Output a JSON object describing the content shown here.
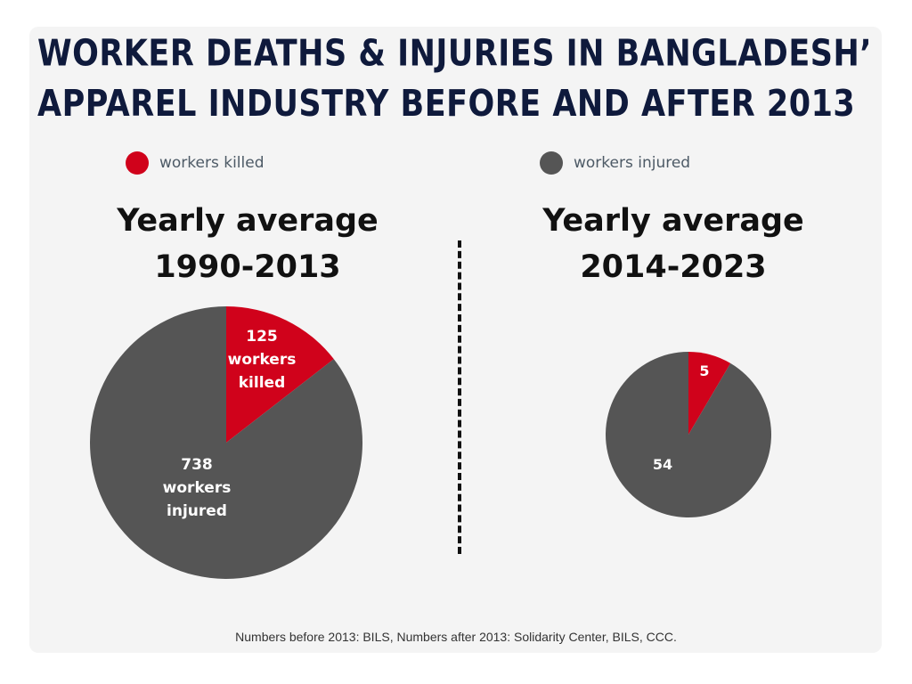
{
  "title_line1": "WORKER DEATHS & INJURIES IN BANGLADESH’",
  "title_line2": "APPAREL INDUSTRY BEFORE AND AFTER 2013",
  "legend": [
    {
      "label": "workers killed",
      "color": "#d0021b"
    },
    {
      "label": "workers injured",
      "color": "#555555"
    }
  ],
  "source": "Numbers before 2013: BILS, Numbers after 2013: Solidarity Center, BILS,  CCC.",
  "chart_data": [
    {
      "type": "pie",
      "title": [
        "Yearly average",
        "1990-2013"
      ],
      "slices": [
        {
          "name": "workers killed",
          "value": 125,
          "color": "#d0021b",
          "label": [
            "125",
            "workers",
            "killed"
          ]
        },
        {
          "name": "workers injured",
          "value": 738,
          "color": "#555555",
          "label": [
            "738",
            "workers",
            "injured"
          ]
        }
      ]
    },
    {
      "type": "pie",
      "title": [
        "Yearly average",
        "2014-2023"
      ],
      "slices": [
        {
          "name": "workers killed",
          "value": 5,
          "color": "#d0021b",
          "label": [
            "5"
          ]
        },
        {
          "name": "workers injured",
          "value": 54,
          "color": "#555555",
          "label": [
            "54"
          ]
        }
      ]
    }
  ]
}
